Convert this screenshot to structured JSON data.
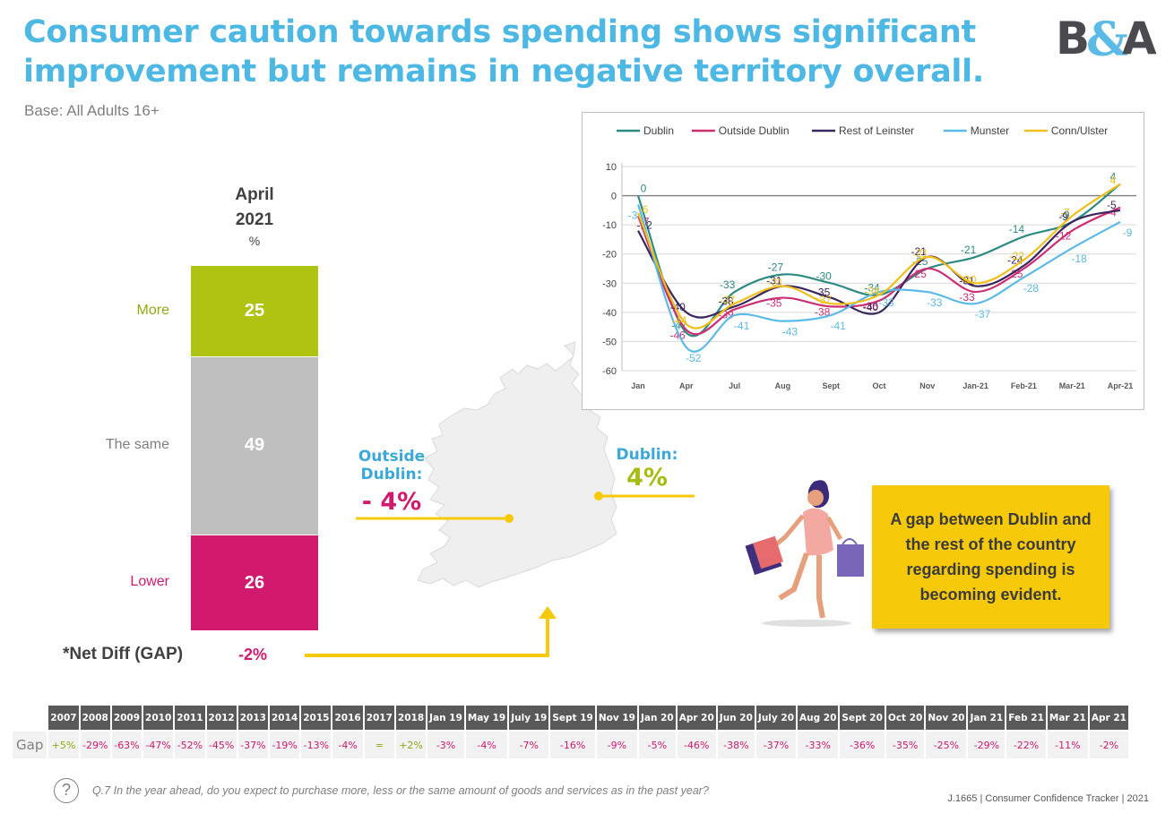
{
  "title": "Consumer caution towards spending shows significant improvement but remains in negative territory overall.",
  "base": "Base: All Adults 16+",
  "logo": {
    "text_b": "B",
    "text_amp": "&",
    "text_a": "A",
    "color_dark": "#4a4a4f",
    "color_accent": "#5bbbe6"
  },
  "stacked_bar": {
    "heading_line1": "April",
    "heading_line2": "2021",
    "heading_unit": "%",
    "segments": [
      {
        "label": "More",
        "value": 25,
        "color": "#afc312",
        "label_color": "#8eab14"
      },
      {
        "label": "The same",
        "value": 49,
        "color": "#bfbfbf",
        "label_color": "#7f7f7f"
      },
      {
        "label": "Lower",
        "value": 26,
        "color": "#d11a6e",
        "label_color": "#d11a6e"
      }
    ],
    "net_label": "*Net Diff (GAP)",
    "net_value": "-2%"
  },
  "map": {
    "outside_dublin_label": "Outside Dublin:",
    "outside_dublin_value": "- 4%",
    "dublin_label": "Dublin:",
    "dublin_value": "4%",
    "connector_color": "#f6ca0a",
    "land_color": "#efefef"
  },
  "callout": {
    "text": "A gap between Dublin and the rest of the country regarding spending is becoming evident."
  },
  "chart_data": {
    "type": "line",
    "title": "",
    "xlabel": "",
    "ylabel": "",
    "categories": [
      "Jan",
      "Apr",
      "Jul",
      "Aug",
      "Sept",
      "Oct",
      "Nov",
      "Jan-21",
      "Feb-21",
      "Mar-21",
      "Apr-21"
    ],
    "ylim": [
      -60,
      10
    ],
    "yticks": [
      10,
      0,
      -10,
      -20,
      -30,
      -40,
      -50,
      -60
    ],
    "grid": true,
    "legend_position": "top",
    "series": [
      {
        "name": "Dublin",
        "color": "#2e8b84",
        "values": [
          0,
          -47,
          -33,
          -27,
          -30,
          -34,
          -25,
          -21,
          -14,
          -9,
          4
        ]
      },
      {
        "name": "Outside Dublin",
        "color": "#cc2f74",
        "values": [
          -7,
          -46,
          -39,
          -35,
          -38,
          -36,
          -25,
          -33,
          -25,
          -12,
          -4
        ]
      },
      {
        "name": "Rest of Leinster",
        "color": "#3b2660",
        "values": [
          -12,
          -40,
          -38,
          -31,
          -35,
          -40,
          -21,
          -31,
          -24,
          -9,
          -5
        ]
      },
      {
        "name": "Munster",
        "color": "#5bbbe6",
        "values": [
          -3,
          -52,
          -41,
          -43,
          -41,
          -33,
          -33,
          -37,
          -28,
          -18,
          -9
        ]
      },
      {
        "name": "Conn/Ulster",
        "color": "#f0bf1a",
        "values": [
          -6,
          -44,
          -37,
          -31,
          -37,
          -34,
          -21,
          -30,
          -22,
          -7,
          4
        ]
      }
    ]
  },
  "gap_table": {
    "row_label": "Gap",
    "columns": [
      "2007",
      "2008",
      "2009",
      "2010",
      "2011",
      "2012",
      "2013",
      "2014",
      "2015",
      "2016",
      "2017",
      "2018",
      "Jan 19",
      "May 19",
      "July 19",
      "Sept 19",
      "Nov 19",
      "Jan 20",
      "Apr 20",
      "Jun 20",
      "July 20",
      "Aug 20",
      "Sept 20",
      "Oct 20",
      "Nov 20",
      "Jan 21",
      "Feb 21",
      "Mar 21",
      "Apr 21"
    ],
    "values": [
      "+5%",
      "-29%",
      "-63%",
      "-47%",
      "-52%",
      "-45%",
      "-37%",
      "-19%",
      "-13%",
      "-4%",
      "=",
      "+2%",
      "-3%",
      "-4%",
      "-7%",
      "-16%",
      "-9%",
      "-5%",
      "-46%",
      "-38%",
      "-37%",
      "-33%",
      "-36%",
      "-35%",
      "-25%",
      "-29%",
      "-22%",
      "-11%",
      "-2%"
    ]
  },
  "question_icon": "?",
  "question": "Q.7 In the year ahead, do you expect to purchase more, less or the same amount of goods and services as in the past year?",
  "footer": "J.1665 | Consumer Confidence Tracker | 2021"
}
